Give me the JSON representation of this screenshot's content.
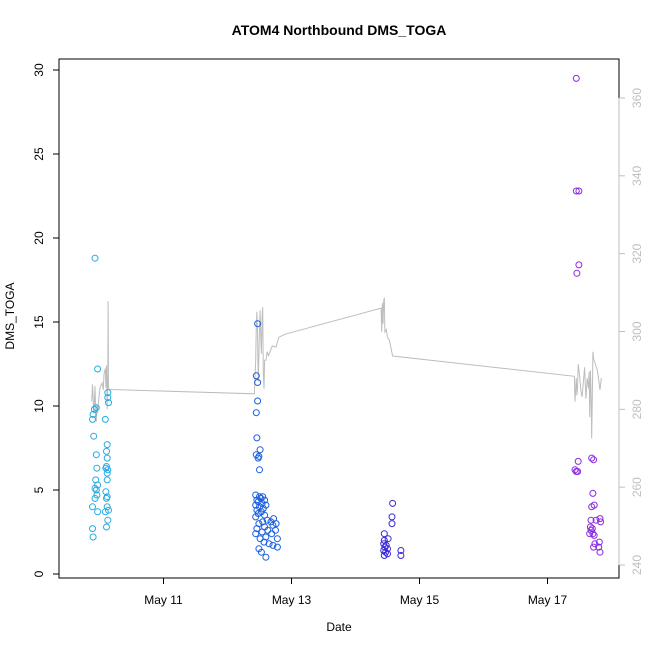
{
  "chart_data": {
    "type": "scatter",
    "title": "ATOM4 Northbound DMS_TOGA",
    "xlabel": "Date",
    "ylabel": "DMS_TOGA",
    "x_ticks": [
      {
        "day": 11,
        "label": "May 11"
      },
      {
        "day": 13,
        "label": "May 13"
      },
      {
        "day": 15,
        "label": "May 15"
      },
      {
        "day": 17,
        "label": "May 17"
      }
    ],
    "xlim_day": [
      9.75,
      18.18
    ],
    "ylim": [
      0,
      30
    ],
    "y_ticks": [
      0,
      5,
      10,
      15,
      20,
      25,
      30
    ],
    "y2lim": [
      240,
      365
    ],
    "y2_ticks": [
      240,
      260,
      280,
      300,
      320,
      340,
      360
    ],
    "colors": {
      "g1": "#29abe2",
      "g2": "#1a5fe0",
      "g3": "#3a2bd6",
      "g4": "#8a2be2",
      "line": "#bdbdbd",
      "axis": "#000000",
      "right_axis": "#bfbfbf"
    },
    "series": [
      {
        "group": "g1",
        "points": [
          [
            9.93,
            18.8
          ],
          [
            9.97,
            12.2
          ],
          [
            9.92,
            9.8
          ],
          [
            9.9,
            9.5
          ],
          [
            9.89,
            9.2
          ],
          [
            9.95,
            9.9
          ],
          [
            10.13,
            10.8
          ],
          [
            10.13,
            10.5
          ],
          [
            10.14,
            10.2
          ],
          [
            10.09,
            9.2
          ],
          [
            9.91,
            8.2
          ],
          [
            10.12,
            7.7
          ],
          [
            9.95,
            7.1
          ],
          [
            10.11,
            7.3
          ],
          [
            10.12,
            6.9
          ],
          [
            10.11,
            6.4
          ],
          [
            10.13,
            6.2
          ],
          [
            10.1,
            6.3
          ],
          [
            9.96,
            6.3
          ],
          [
            10.12,
            6.0
          ],
          [
            9.94,
            5.6
          ],
          [
            10.12,
            5.6
          ],
          [
            9.97,
            5.3
          ],
          [
            9.93,
            5.1
          ],
          [
            9.95,
            5.0
          ],
          [
            10.1,
            4.9
          ],
          [
            9.96,
            4.7
          ],
          [
            10.12,
            4.6
          ],
          [
            10.11,
            4.5
          ],
          [
            9.93,
            4.5
          ],
          [
            9.89,
            4.0
          ],
          [
            10.12,
            4.0
          ],
          [
            10.14,
            3.8
          ],
          [
            10.09,
            3.7
          ],
          [
            9.97,
            3.7
          ],
          [
            10.13,
            3.2
          ],
          [
            10.11,
            2.8
          ],
          [
            9.89,
            2.7
          ],
          [
            9.9,
            2.2
          ]
        ]
      },
      {
        "group": "g2",
        "points": [
          [
            12.47,
            14.9
          ],
          [
            12.45,
            11.8
          ],
          [
            12.47,
            11.4
          ],
          [
            12.47,
            10.3
          ],
          [
            12.45,
            9.6
          ],
          [
            12.46,
            8.1
          ],
          [
            12.51,
            7.4
          ],
          [
            12.45,
            7.1
          ],
          [
            12.49,
            7.0
          ],
          [
            12.48,
            6.9
          ],
          [
            12.5,
            6.2
          ],
          [
            12.44,
            4.7
          ],
          [
            12.55,
            4.6
          ],
          [
            12.5,
            4.6
          ],
          [
            12.52,
            4.5
          ],
          [
            12.46,
            4.4
          ],
          [
            12.58,
            4.4
          ],
          [
            12.48,
            4.3
          ],
          [
            12.54,
            4.2
          ],
          [
            12.44,
            4.1
          ],
          [
            12.6,
            4.1
          ],
          [
            12.5,
            4.0
          ],
          [
            12.56,
            3.9
          ],
          [
            12.46,
            3.8
          ],
          [
            12.53,
            3.7
          ],
          [
            12.48,
            3.6
          ],
          [
            12.58,
            3.5
          ],
          [
            12.44,
            3.4
          ],
          [
            12.72,
            3.3
          ],
          [
            12.62,
            3.2
          ],
          [
            12.55,
            3.1
          ],
          [
            12.68,
            3.1
          ],
          [
            12.76,
            3.0
          ],
          [
            12.49,
            3.0
          ],
          [
            12.71,
            2.9
          ],
          [
            12.58,
            2.8
          ],
          [
            12.46,
            2.7
          ],
          [
            12.63,
            2.6
          ],
          [
            12.75,
            2.6
          ],
          [
            12.54,
            2.5
          ],
          [
            12.69,
            2.4
          ],
          [
            12.44,
            2.4
          ],
          [
            12.6,
            2.2
          ],
          [
            12.51,
            2.1
          ],
          [
            12.78,
            2.1
          ],
          [
            12.57,
            1.9
          ],
          [
            12.65,
            1.8
          ],
          [
            12.78,
            1.6
          ],
          [
            12.49,
            1.5
          ],
          [
            12.71,
            1.7
          ],
          [
            12.53,
            1.3
          ],
          [
            12.6,
            1.0
          ]
        ]
      },
      {
        "group": "g3",
        "points": [
          [
            14.58,
            4.2
          ],
          [
            14.57,
            3.4
          ],
          [
            14.57,
            3.0
          ],
          [
            14.45,
            2.4
          ],
          [
            14.51,
            2.1
          ],
          [
            14.45,
            2.0
          ],
          [
            14.44,
            1.8
          ],
          [
            14.48,
            1.7
          ],
          [
            14.46,
            1.6
          ],
          [
            14.5,
            1.5
          ],
          [
            14.44,
            1.4
          ],
          [
            14.71,
            1.4
          ],
          [
            14.47,
            1.3
          ],
          [
            14.5,
            1.2
          ],
          [
            14.45,
            1.1
          ],
          [
            14.71,
            1.1
          ]
        ]
      },
      {
        "group": "g4",
        "points": [
          [
            17.45,
            29.5
          ],
          [
            17.45,
            22.8
          ],
          [
            17.49,
            22.8
          ],
          [
            17.49,
            18.4
          ],
          [
            17.46,
            17.9
          ],
          [
            17.48,
            6.7
          ],
          [
            17.43,
            6.2
          ],
          [
            17.47,
            6.1
          ],
          [
            17.45,
            6.1
          ],
          [
            17.69,
            6.9
          ],
          [
            17.72,
            6.8
          ],
          [
            17.71,
            4.8
          ],
          [
            17.73,
            4.1
          ],
          [
            17.69,
            4.0
          ],
          [
            17.82,
            3.3
          ],
          [
            17.68,
            3.2
          ],
          [
            17.76,
            3.2
          ],
          [
            17.83,
            3.1
          ],
          [
            17.67,
            2.8
          ],
          [
            17.7,
            2.7
          ],
          [
            17.68,
            2.6
          ],
          [
            17.71,
            2.4
          ],
          [
            17.66,
            2.4
          ],
          [
            17.73,
            2.3
          ],
          [
            17.81,
            1.9
          ],
          [
            17.74,
            1.8
          ],
          [
            17.8,
            1.6
          ],
          [
            17.72,
            1.6
          ],
          [
            17.82,
            1.3
          ]
        ]
      }
    ],
    "line_series": [
      [
        [
          9.88,
          282.0
        ],
        [
          9.89,
          286.4
        ],
        [
          9.9,
          283.2
        ],
        [
          9.91,
          279.0
        ],
        [
          9.92,
          281.8
        ],
        [
          9.93,
          286.0
        ],
        [
          9.94,
          280.0
        ],
        [
          9.95,
          276.8
        ],
        [
          9.96,
          281.2
        ],
        [
          9.97,
          279.0
        ],
        [
          9.99,
          283.1
        ],
        [
          10.01,
          285.7
        ],
        [
          10.04,
          286.8
        ],
        [
          10.06,
          285.0
        ],
        [
          10.07,
          289.0
        ],
        [
          10.09,
          290.5
        ],
        [
          10.1,
          285.6
        ],
        [
          10.11,
          291.3
        ],
        [
          10.12,
          280.0
        ],
        [
          10.13,
          288.5
        ],
        [
          10.135,
          307.8
        ],
        [
          10.14,
          285.5
        ],
        [
          10.16,
          285.1
        ],
        [
          12.42,
          284.0
        ],
        [
          12.43,
          288.2
        ],
        [
          12.44,
          292.6
        ],
        [
          12.45,
          301.5
        ],
        [
          12.46,
          305.1
        ],
        [
          12.47,
          298.8
        ],
        [
          12.48,
          287.1
        ],
        [
          12.49,
          293.8
        ],
        [
          12.5,
          301.4
        ],
        [
          12.51,
          305.5
        ],
        [
          12.52,
          298.4
        ],
        [
          12.53,
          294.3
        ],
        [
          12.54,
          303.6
        ],
        [
          12.55,
          306.3
        ],
        [
          12.56,
          289.5
        ],
        [
          12.57,
          285.3
        ],
        [
          12.58,
          292.6
        ],
        [
          12.6,
          292.6
        ],
        [
          12.62,
          294.8
        ],
        [
          12.64,
          293.8
        ],
        [
          12.7,
          296.3
        ],
        [
          12.76,
          296.0
        ],
        [
          12.8,
          298.5
        ],
        [
          12.9,
          299.3
        ],
        [
          14.4,
          306.0
        ],
        [
          14.41,
          299.9
        ],
        [
          14.42,
          307.3
        ],
        [
          14.43,
          302.0
        ],
        [
          14.44,
          307.9
        ],
        [
          14.45,
          308.7
        ],
        [
          14.46,
          299.9
        ],
        [
          14.48,
          300.5
        ],
        [
          14.5,
          298.5
        ],
        [
          14.53,
          297.8
        ],
        [
          14.58,
          293.7
        ],
        [
          17.42,
          288.5
        ],
        [
          17.43,
          282.0
        ],
        [
          17.44,
          285.2
        ],
        [
          17.45,
          288.0
        ],
        [
          17.46,
          283.6
        ],
        [
          17.47,
          285.8
        ],
        [
          17.48,
          291.6
        ],
        [
          17.5,
          289.0
        ],
        [
          17.52,
          285.0
        ],
        [
          17.54,
          283.2
        ],
        [
          17.56,
          286.8
        ],
        [
          17.58,
          290.8
        ],
        [
          17.6,
          282.7
        ],
        [
          17.62,
          288.0
        ],
        [
          17.64,
          285.4
        ],
        [
          17.65,
          289.7
        ],
        [
          17.66,
          278.0
        ],
        [
          17.67,
          290.0
        ],
        [
          17.68,
          285.1
        ],
        [
          17.69,
          272.5
        ],
        [
          17.7,
          282.8
        ],
        [
          17.71,
          294.8
        ],
        [
          17.72,
          293.0
        ],
        [
          17.74,
          292.0
        ],
        [
          17.76,
          291.0
        ],
        [
          17.78,
          290.0
        ],
        [
          17.8,
          287.5
        ],
        [
          17.82,
          285.0
        ],
        [
          17.84,
          288.1
        ]
      ]
    ]
  }
}
